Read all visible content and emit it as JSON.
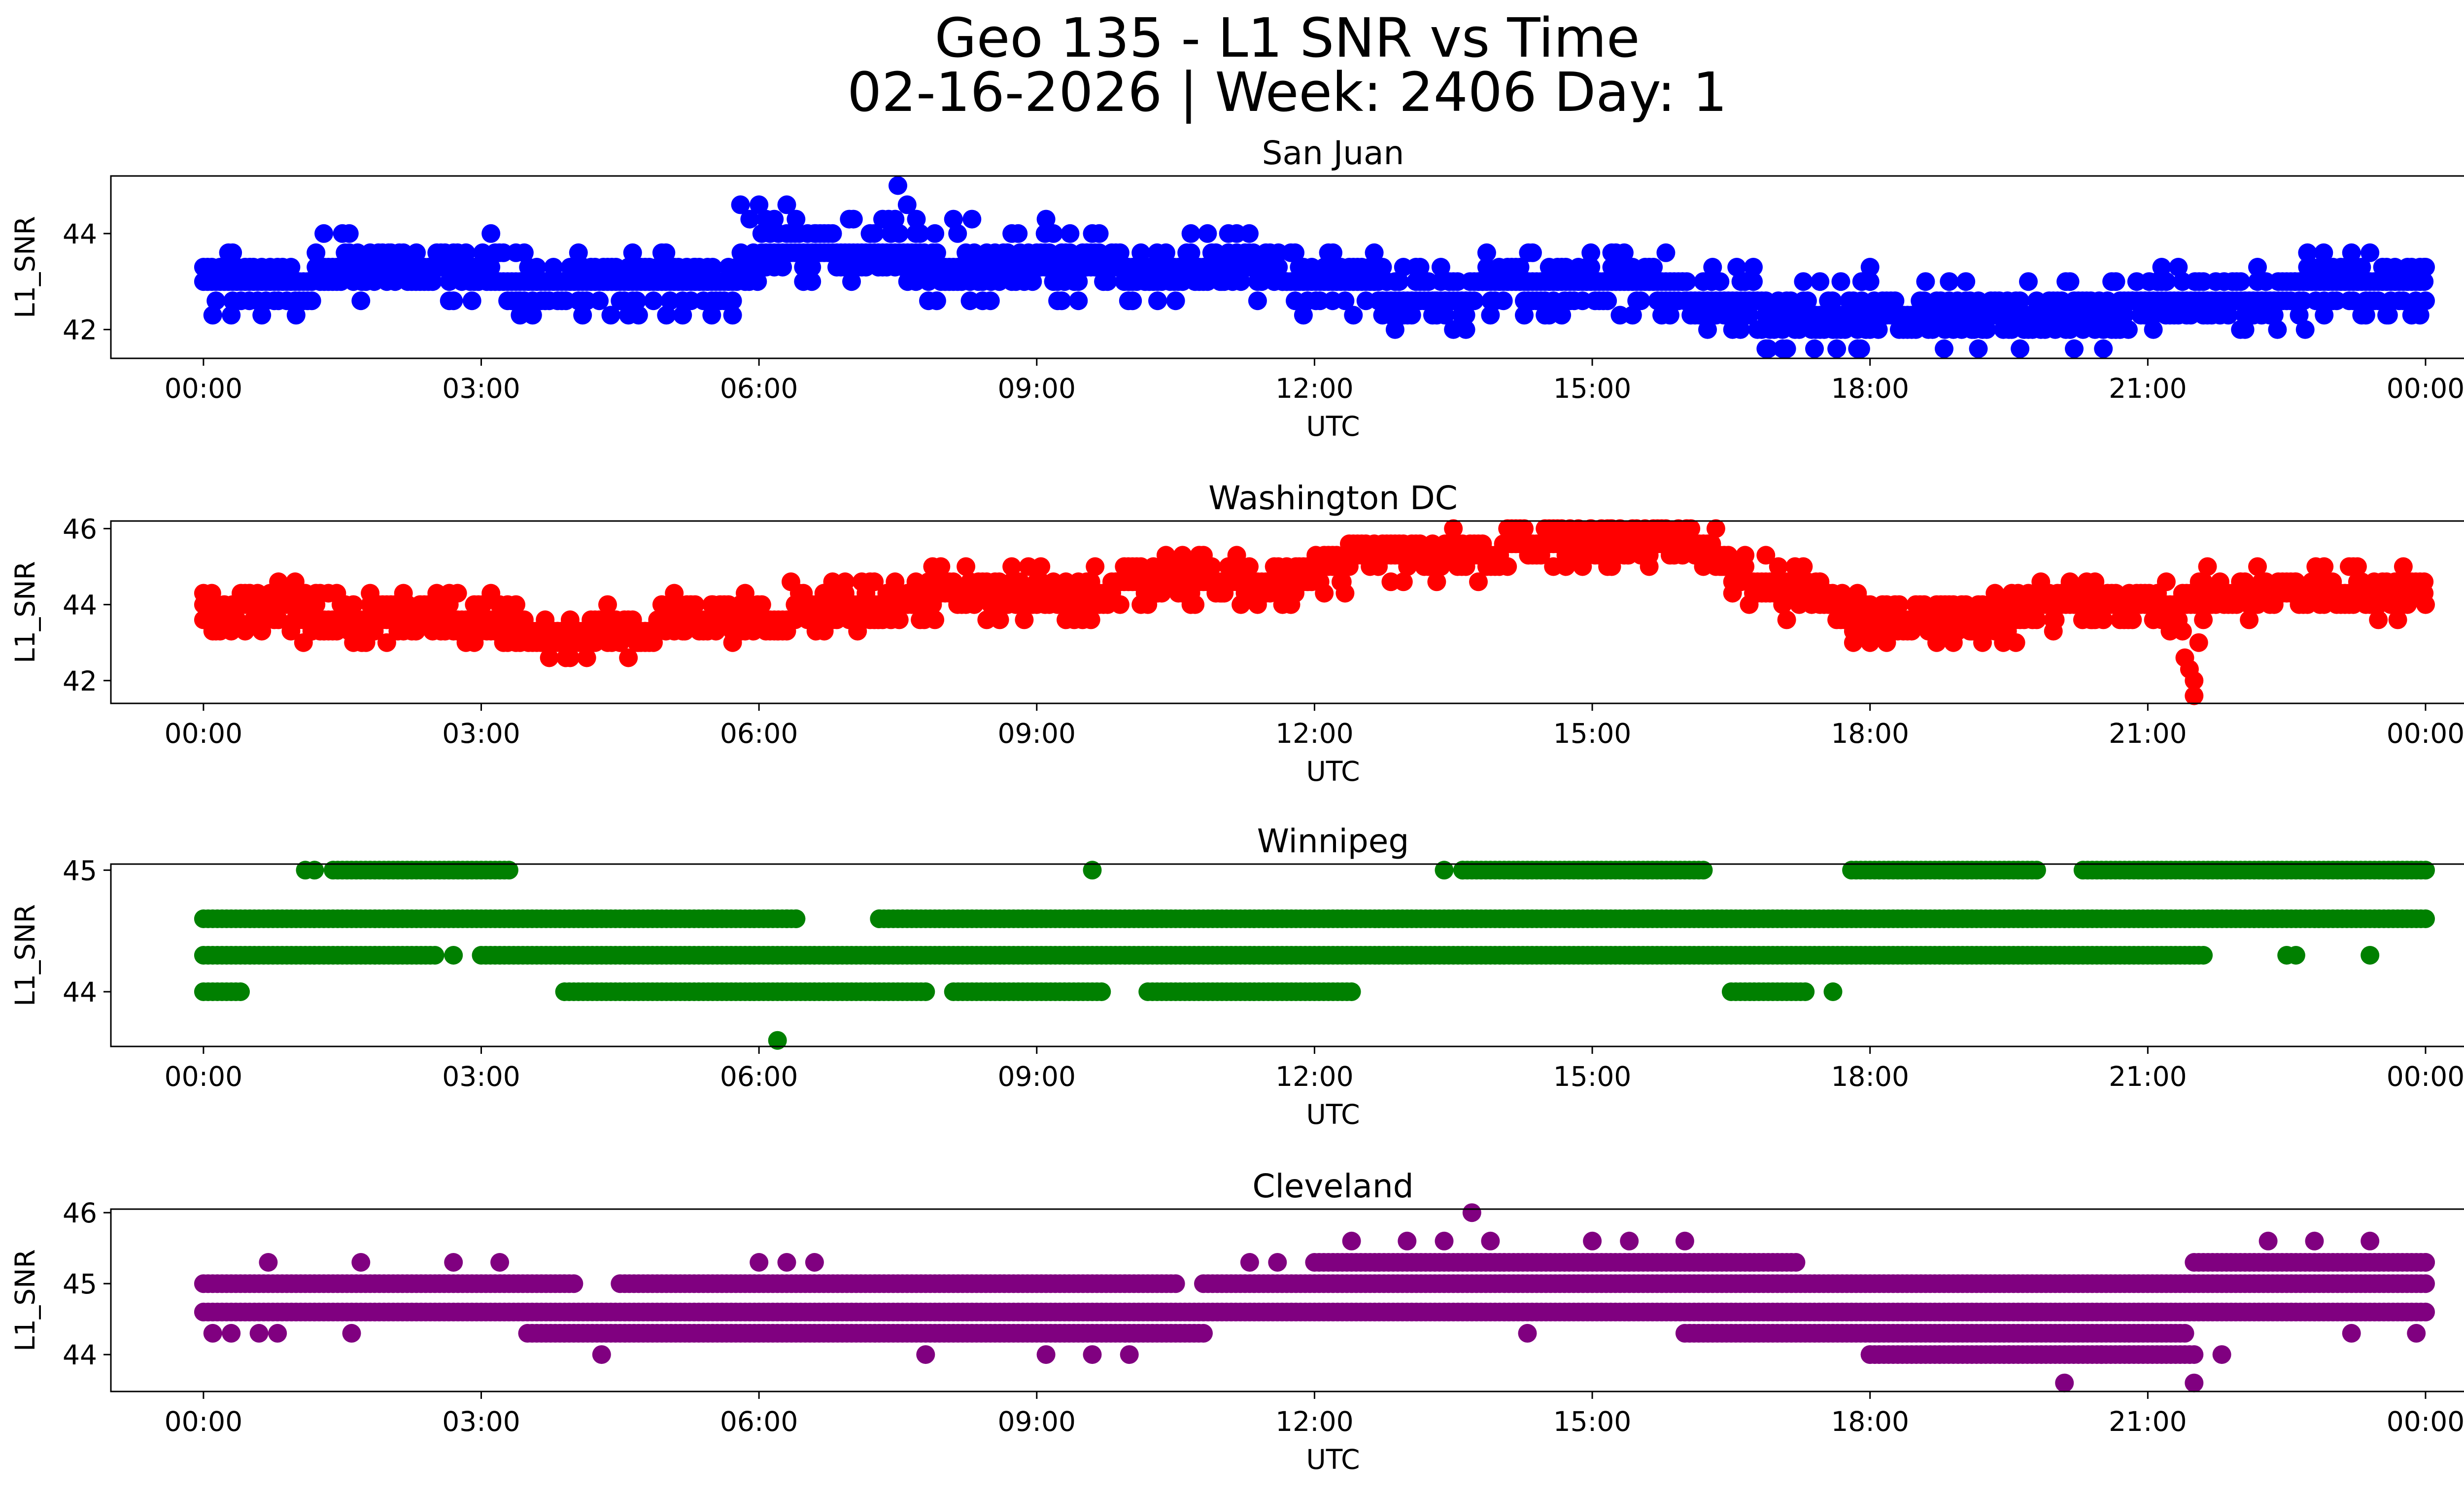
{
  "title_line1": "Geo 135 - L1 SNR vs Time",
  "title_line2": "02-16-2026 | Week: 2406 Day: 1",
  "chart_data": [
    {
      "type": "scatter",
      "title": "San Juan",
      "color": "#0000ff",
      "xlabel": "UTC",
      "ylabel": "L1_SNR",
      "xlim_hours": [
        -1,
        25.4
      ],
      "ylim": [
        41.4,
        45.2
      ],
      "xticks": [
        "00:00",
        "03:00",
        "06:00",
        "09:00",
        "12:00",
        "15:00",
        "18:00",
        "21:00",
        "00:00"
      ],
      "yticks": [
        42,
        44
      ],
      "levels": [
        41.6,
        42.0,
        42.3,
        42.6,
        43.0,
        43.3,
        43.6,
        44.0,
        44.3,
        44.6,
        45.0
      ],
      "baseline": [
        [
          0,
          43.0
        ],
        [
          1.0,
          43.0
        ],
        [
          1.4,
          43.3
        ],
        [
          2.5,
          43.3
        ],
        [
          3.8,
          43.0
        ],
        [
          5.7,
          43.0
        ],
        [
          6.1,
          43.6
        ],
        [
          7.5,
          43.6
        ],
        [
          8.0,
          43.3
        ],
        [
          11.0,
          43.3
        ],
        [
          12.3,
          43.0
        ],
        [
          13.0,
          42.6
        ],
        [
          14.5,
          43.0
        ],
        [
          15.5,
          43.0
        ],
        [
          16.5,
          42.6
        ],
        [
          17.2,
          42.3
        ],
        [
          18.2,
          42.3
        ],
        [
          19.0,
          42.3
        ],
        [
          20.0,
          42.3
        ],
        [
          21.5,
          42.6
        ],
        [
          23.5,
          43.0
        ],
        [
          24.0,
          43.0
        ]
      ],
      "points": [
        [
          0.1,
          42.3
        ],
        [
          0.3,
          42.3
        ],
        [
          0.5,
          43.3
        ],
        [
          0.8,
          43.3
        ],
        [
          1.0,
          42.3
        ],
        [
          1.3,
          44.0
        ],
        [
          1.5,
          44.0
        ],
        [
          1.7,
          42.6
        ],
        [
          2.0,
          43.6
        ],
        [
          2.3,
          43.6
        ],
        [
          2.7,
          42.6
        ],
        [
          2.9,
          42.6
        ],
        [
          3.4,
          42.6
        ],
        [
          4.1,
          43.3
        ],
        [
          4.4,
          42.3
        ],
        [
          4.7,
          42.3
        ],
        [
          5.0,
          42.3
        ],
        [
          5.3,
          43.3
        ],
        [
          5.5,
          43.3
        ],
        [
          5.8,
          44.6
        ],
        [
          5.9,
          44.3
        ],
        [
          6.0,
          44.6
        ],
        [
          6.3,
          44.6
        ],
        [
          6.4,
          44.3
        ],
        [
          6.6,
          44.0
        ],
        [
          7.0,
          43.0
        ],
        [
          7.2,
          44.0
        ],
        [
          7.4,
          44.3
        ],
        [
          7.5,
          45.0
        ],
        [
          7.6,
          44.6
        ],
        [
          7.7,
          44.3
        ],
        [
          7.9,
          44.0
        ],
        [
          8.1,
          44.3
        ],
        [
          8.3,
          44.3
        ],
        [
          8.5,
          42.6
        ],
        [
          8.8,
          44.0
        ],
        [
          9.1,
          44.3
        ],
        [
          9.3,
          43.0
        ],
        [
          9.6,
          44.0
        ],
        [
          10.0,
          43.0
        ],
        [
          10.3,
          43.6
        ],
        [
          10.5,
          42.6
        ],
        [
          11.0,
          43.0
        ],
        [
          11.4,
          43.3
        ],
        [
          11.8,
          43.0
        ],
        [
          12.2,
          43.6
        ],
        [
          12.6,
          43.3
        ],
        [
          12.9,
          42.3
        ],
        [
          13.3,
          42.6
        ],
        [
          13.5,
          42.0
        ],
        [
          13.9,
          42.3
        ],
        [
          14.3,
          43.0
        ],
        [
          14.7,
          42.6
        ],
        [
          15.4,
          43.3
        ],
        [
          16.0,
          42.6
        ],
        [
          16.3,
          43.3
        ],
        [
          16.6,
          42.0
        ],
        [
          16.9,
          41.6
        ],
        [
          17.1,
          41.6
        ],
        [
          17.4,
          41.6
        ],
        [
          17.6,
          42.0
        ],
        [
          17.9,
          41.6
        ],
        [
          18.0,
          43.3
        ],
        [
          18.3,
          42.3
        ],
        [
          18.6,
          43.0
        ],
        [
          18.8,
          41.6
        ],
        [
          19.1,
          42.0
        ],
        [
          19.5,
          42.0
        ],
        [
          20.0,
          42.0
        ],
        [
          20.3,
          42.0
        ],
        [
          20.7,
          42.0
        ],
        [
          21.2,
          43.0
        ],
        [
          21.6,
          43.0
        ],
        [
          22.0,
          42.0
        ],
        [
          22.4,
          42.0
        ],
        [
          22.7,
          42.0
        ],
        [
          22.9,
          43.6
        ],
        [
          23.0,
          43.3
        ],
        [
          23.2,
          43.6
        ],
        [
          23.4,
          43.6
        ],
        [
          23.6,
          42.3
        ],
        [
          24.0,
          43.3
        ],
        [
          24.0,
          42.6
        ]
      ]
    },
    {
      "type": "scatter",
      "title": "Washington DC",
      "color": "#ff0000",
      "xlabel": "UTC",
      "ylabel": "L1_SNR",
      "xlim_hours": [
        -1,
        25.4
      ],
      "ylim": [
        41.4,
        46.2
      ],
      "xticks": [
        "00:00",
        "03:00",
        "06:00",
        "09:00",
        "12:00",
        "15:00",
        "18:00",
        "21:00",
        "00:00"
      ],
      "yticks": [
        42,
        44,
        46
      ],
      "levels": [
        41.6,
        42.0,
        42.3,
        42.6,
        43.0,
        43.3,
        43.6,
        44.0,
        44.3,
        44.6,
        45.0,
        45.3,
        45.6,
        46.0
      ],
      "baseline": [
        [
          0,
          43.6
        ],
        [
          0.6,
          44.0
        ],
        [
          1.5,
          43.6
        ],
        [
          3.0,
          43.6
        ],
        [
          3.5,
          43.3
        ],
        [
          3.9,
          43.0
        ],
        [
          4.6,
          43.3
        ],
        [
          5.2,
          43.6
        ],
        [
          6.0,
          43.6
        ],
        [
          6.7,
          44.0
        ],
        [
          7.2,
          44.0
        ],
        [
          8.0,
          44.3
        ],
        [
          9.5,
          44.3
        ],
        [
          10.2,
          44.6
        ],
        [
          11.5,
          44.6
        ],
        [
          12.2,
          45.0
        ],
        [
          12.6,
          45.3
        ],
        [
          13.5,
          45.3
        ],
        [
          14.5,
          45.6
        ],
        [
          16.0,
          45.6
        ],
        [
          16.4,
          45.3
        ],
        [
          16.8,
          44.6
        ],
        [
          17.3,
          44.3
        ],
        [
          17.6,
          44.0
        ],
        [
          18.0,
          43.6
        ],
        [
          19.4,
          43.6
        ],
        [
          19.8,
          44.0
        ],
        [
          21.5,
          44.0
        ],
        [
          21.8,
          44.3
        ],
        [
          23.0,
          44.3
        ],
        [
          24.0,
          44.3
        ]
      ],
      "points": [
        [
          0.1,
          43.3
        ],
        [
          0.3,
          43.3
        ],
        [
          0.5,
          44.3
        ],
        [
          0.8,
          44.3
        ],
        [
          1.1,
          44.3
        ],
        [
          1.3,
          43.3
        ],
        [
          1.6,
          43.3
        ],
        [
          2.1,
          43.3
        ],
        [
          2.5,
          44.0
        ],
        [
          3.0,
          43.3
        ],
        [
          3.4,
          43.6
        ],
        [
          3.9,
          43.0
        ],
        [
          4.2,
          43.0
        ],
        [
          4.5,
          43.0
        ],
        [
          4.7,
          43.0
        ],
        [
          5.2,
          43.3
        ],
        [
          5.5,
          44.0
        ],
        [
          5.8,
          44.0
        ],
        [
          6.2,
          43.3
        ],
        [
          6.7,
          44.3
        ],
        [
          7.0,
          43.6
        ],
        [
          7.5,
          44.0
        ],
        [
          7.9,
          43.6
        ],
        [
          8.3,
          44.3
        ],
        [
          8.6,
          43.6
        ],
        [
          9.0,
          44.6
        ],
        [
          9.5,
          44.0
        ],
        [
          10.2,
          44.0
        ],
        [
          11.0,
          44.3
        ],
        [
          11.5,
          44.6
        ],
        [
          11.8,
          45.0
        ],
        [
          12.3,
          44.6
        ],
        [
          12.6,
          45.3
        ],
        [
          13.3,
          45.3
        ],
        [
          13.6,
          45.6
        ],
        [
          14.0,
          45.3
        ],
        [
          14.5,
          45.6
        ],
        [
          15.1,
          46.0
        ],
        [
          15.2,
          46.0
        ],
        [
          15.6,
          45.3
        ],
        [
          16.2,
          45.6
        ],
        [
          16.4,
          45.0
        ],
        [
          17.0,
          44.6
        ],
        [
          17.4,
          44.3
        ],
        [
          17.7,
          44.3
        ],
        [
          18.0,
          43.6
        ],
        [
          18.3,
          43.3
        ],
        [
          18.8,
          43.3
        ],
        [
          19.1,
          43.3
        ],
        [
          19.6,
          44.3
        ],
        [
          20.0,
          43.6
        ],
        [
          20.4,
          43.6
        ],
        [
          20.8,
          44.3
        ],
        [
          21.2,
          44.6
        ],
        [
          21.4,
          42.6
        ],
        [
          21.45,
          42.3
        ],
        [
          21.5,
          41.6
        ],
        [
          21.55,
          43.0
        ],
        [
          21.5,
          42.0
        ],
        [
          21.6,
          44.3
        ],
        [
          22.0,
          44.6
        ],
        [
          22.6,
          44.6
        ],
        [
          23.0,
          44.3
        ],
        [
          23.4,
          44.3
        ],
        [
          23.7,
          43.6
        ],
        [
          24.0,
          44.0
        ]
      ]
    },
    {
      "type": "scatter",
      "title": "Winnipeg",
      "color": "#008000",
      "xlabel": "UTC",
      "ylabel": "L1_SNR",
      "xlim_hours": [
        -1,
        25.4
      ],
      "ylim": [
        43.55,
        45.05
      ],
      "xticks": [
        "00:00",
        "03:00",
        "06:00",
        "09:00",
        "12:00",
        "15:00",
        "18:00",
        "21:00",
        "00:00"
      ],
      "yticks": [
        44,
        45
      ],
      "levels": [
        43.6,
        44.0,
        44.3,
        44.6,
        45.0
      ],
      "bands": [
        {
          "y": 44.6,
          "segments": [
            [
              0,
              6.4
            ],
            [
              7.3,
              24.0
            ]
          ]
        },
        {
          "y": 44.3,
          "segments": [
            [
              0,
              2.5
            ],
            [
              3.0,
              21.6
            ]
          ]
        },
        {
          "y": 44.0,
          "segments": [
            [
              0,
              0.4
            ],
            [
              3.9,
              7.8
            ],
            [
              8.1,
              9.7
            ],
            [
              10.2,
              12.4
            ],
            [
              16.5,
              17.3
            ]
          ]
        },
        {
          "y": 45.0,
          "segments": [
            [
              1.4,
              3.3
            ],
            [
              13.6,
              16.2
            ],
            [
              17.8,
              19.8
            ],
            [
              20.3,
              24.0
            ]
          ]
        }
      ],
      "points": [
        [
          1.1,
          45.0
        ],
        [
          1.2,
          45.0
        ],
        [
          2.7,
          44.3
        ],
        [
          6.2,
          43.6
        ],
        [
          6.3,
          44.6
        ],
        [
          6.4,
          44.6
        ],
        [
          7.3,
          44.6
        ],
        [
          9.6,
          45.0
        ],
        [
          13.4,
          45.0
        ],
        [
          13.6,
          45.0
        ],
        [
          17.6,
          44.0
        ],
        [
          22.5,
          44.3
        ],
        [
          22.6,
          44.3
        ],
        [
          23.4,
          44.3
        ]
      ]
    },
    {
      "type": "scatter",
      "title": "Cleveland",
      "color": "#800080",
      "xlabel": "UTC",
      "ylabel": "L1_SNR",
      "xlim_hours": [
        -1,
        25.4
      ],
      "ylim": [
        43.48,
        46.05
      ],
      "xticks": [
        "00:00",
        "03:00",
        "06:00",
        "09:00",
        "12:00",
        "15:00",
        "18:00",
        "21:00",
        "00:00"
      ],
      "yticks": [
        44,
        45,
        46
      ],
      "levels": [
        43.6,
        44.0,
        44.3,
        44.6,
        45.0,
        45.3,
        45.6,
        46.0
      ],
      "bands": [
        {
          "y": 44.6,
          "segments": [
            [
              0,
              24.0
            ]
          ]
        },
        {
          "y": 45.0,
          "segments": [
            [
              0,
              4.0
            ],
            [
              4.5,
              10.5
            ],
            [
              10.8,
              24.0
            ]
          ]
        },
        {
          "y": 44.3,
          "segments": [
            [
              3.5,
              10.8
            ],
            [
              16.0,
              21.4
            ]
          ]
        },
        {
          "y": 45.3,
          "segments": [
            [
              12.0,
              17.2
            ],
            [
              21.5,
              24.0
            ]
          ]
        },
        {
          "y": 44.0,
          "segments": [
            [
              18.0,
              21.5
            ]
          ]
        }
      ],
      "points": [
        [
          0.1,
          44.3
        ],
        [
          0.3,
          44.3
        ],
        [
          0.7,
          45.3
        ],
        [
          0.6,
          44.3
        ],
        [
          0.8,
          44.3
        ],
        [
          1.6,
          44.3
        ],
        [
          1.7,
          45.3
        ],
        [
          2.7,
          45.3
        ],
        [
          3.2,
          45.3
        ],
        [
          4.3,
          44.0
        ],
        [
          6.0,
          45.3
        ],
        [
          6.3,
          45.3
        ],
        [
          6.6,
          45.3
        ],
        [
          7.8,
          44.0
        ],
        [
          9.1,
          44.0
        ],
        [
          9.6,
          44.0
        ],
        [
          10.0,
          44.0
        ],
        [
          11.3,
          45.3
        ],
        [
          11.6,
          45.3
        ],
        [
          12.4,
          45.6
        ],
        [
          13.0,
          45.6
        ],
        [
          13.4,
          45.6
        ],
        [
          13.7,
          46.0
        ],
        [
          13.9,
          45.6
        ],
        [
          14.3,
          44.3
        ],
        [
          15.0,
          45.6
        ],
        [
          15.4,
          45.6
        ],
        [
          16.0,
          45.6
        ],
        [
          18.0,
          44.0
        ],
        [
          19.5,
          44.0
        ],
        [
          20.1,
          43.6
        ],
        [
          20.5,
          44.0
        ],
        [
          21.5,
          43.6
        ],
        [
          21.8,
          44.0
        ],
        [
          22.3,
          45.6
        ],
        [
          22.8,
          45.6
        ],
        [
          23.2,
          44.3
        ],
        [
          23.4,
          45.6
        ],
        [
          23.9,
          44.3
        ],
        [
          24.0,
          45.3
        ]
      ]
    }
  ]
}
